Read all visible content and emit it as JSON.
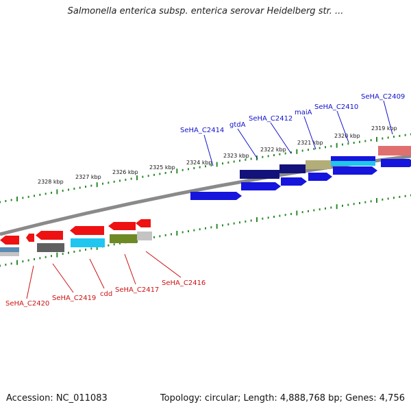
{
  "title": "Salmonella enterica subsp. enterica serovar Heidelberg str. ...",
  "footer": {
    "accession": "Accession: NC_011083",
    "topology": "Topology: circular; Length: 4,888,768 bp; Genes: 4,756"
  },
  "colors": {
    "backbone": "#8a8a8a",
    "tick": "#2a8a2a",
    "forward_label": "#1010cc",
    "reverse_label": "#cc1111",
    "gene_blue": "#1515dd",
    "gene_navy": "#12127a",
    "gene_khaki": "#b3ad78",
    "gene_cyan": "#1ec6f0",
    "gene_red": "#ee1111",
    "gene_pink": "#e07070",
    "gene_grey": "#606060",
    "gene_olive": "#6f8a24",
    "gene_lightgrey": "#c4c4c4",
    "gene_steel": "#5a8ab5"
  },
  "position_labels": [
    "2328 kbp",
    "2327 kbp",
    "2326 kbp",
    "2325 kbp",
    "2324 kbp",
    "2323 kbp",
    "2322 kbp",
    "2321 kbp",
    "2320 kbp",
    "2319 kbp"
  ],
  "forward_genes": [
    "SeHA_C2414",
    "gtdA",
    "SeHA_C2412",
    "maiA",
    "SeHA_C2410",
    "SeHA_C2409"
  ],
  "reverse_genes": [
    "SeHA_C2420",
    "SeHA_C2419",
    "cdd",
    "SeHA_C2417",
    "SeHA_C2416"
  ]
}
